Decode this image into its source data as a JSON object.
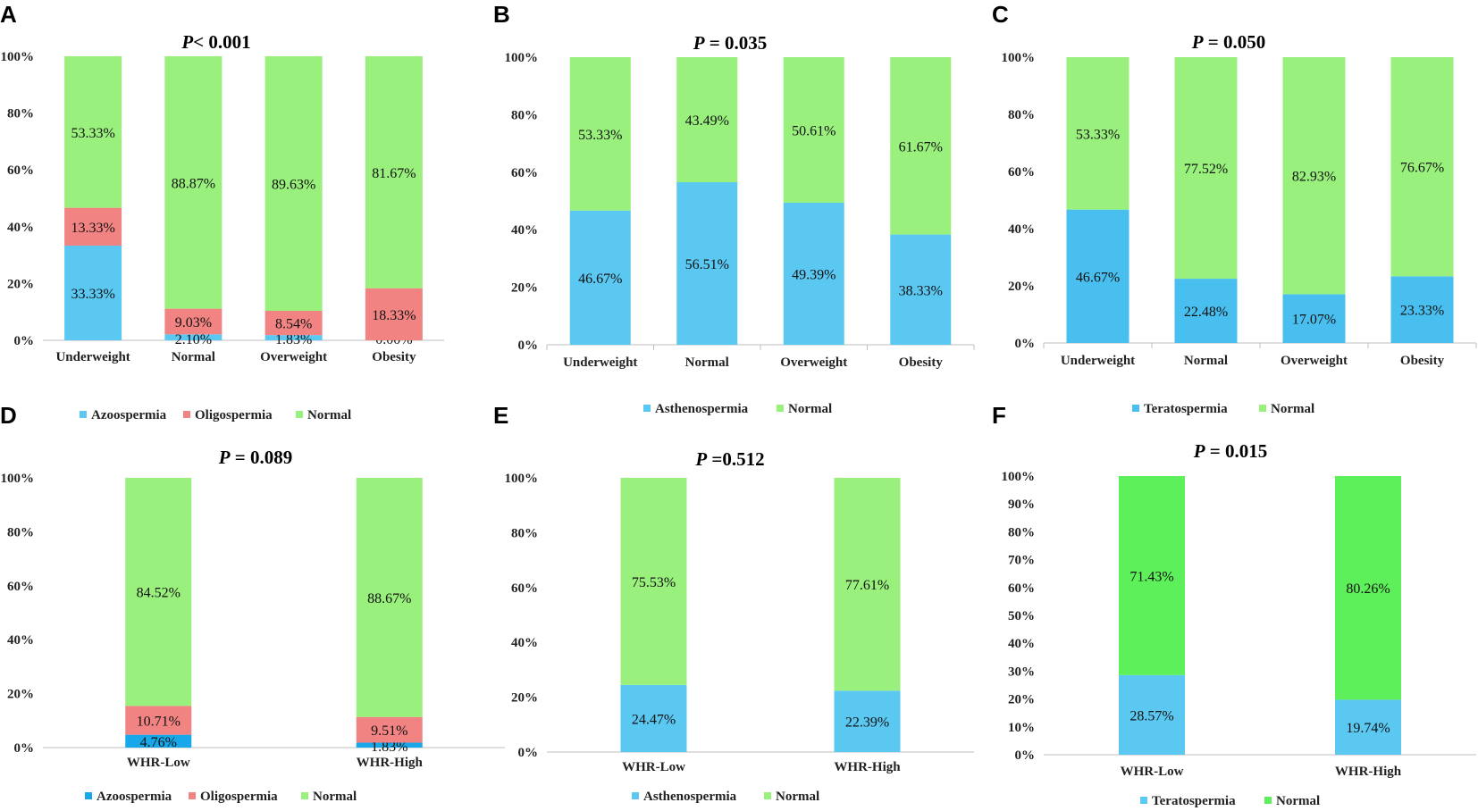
{
  "colors": {
    "A": {
      "Azoospermia": "#5bc8f2",
      "Oligospermia": "#f28383",
      "Normal": "#99f07c"
    },
    "B": {
      "Asthenospermia": "#5bc8f2",
      "Normal": "#99f07c"
    },
    "C": {
      "Teratospermia": "#49bff0",
      "Normal": "#99f07c"
    },
    "D": {
      "Azoospermia": "#18a8ea",
      "Oligospermia": "#f28383",
      "Normal": "#99f07c"
    },
    "E": {
      "Asthenospermia": "#5bc8f2",
      "Normal": "#99f07c"
    },
    "F": {
      "Teratospermia": "#5bc8f2",
      "Normal": "#5ef05a"
    }
  },
  "chart_data": [
    {
      "id": "A",
      "panel_label": "A",
      "type": "bar",
      "stacked": true,
      "title_prefix": "P",
      "title_rest": "< 0.001",
      "categories": [
        "Underweight",
        "Normal",
        "Overweight",
        "Obesity"
      ],
      "series": [
        {
          "name": "Azoospermia",
          "values": [
            33.33,
            2.1,
            1.83,
            0.0
          ],
          "labels": [
            "33.33%",
            "2.10%",
            "1.83%",
            "0.00%"
          ]
        },
        {
          "name": "Oligospermia",
          "values": [
            13.33,
            9.03,
            8.54,
            18.33
          ],
          "labels": [
            "13.33%",
            "9.03%",
            "8.54%",
            "18.33%"
          ]
        },
        {
          "name": "Normal",
          "values": [
            53.33,
            88.87,
            89.63,
            81.67
          ],
          "labels": [
            "53.33%",
            "88.87%",
            "89.63%",
            "81.67%"
          ]
        }
      ],
      "ylim": [
        0,
        100
      ],
      "yticks": [
        "0%",
        "20%",
        "40%",
        "60%",
        "80%",
        "100%"
      ],
      "legend": {
        "position": "bottom",
        "entries": [
          "Azoospermia",
          "Oligospermia",
          "Normal"
        ]
      }
    },
    {
      "id": "B",
      "panel_label": "B",
      "type": "bar",
      "stacked": true,
      "title_prefix": "P",
      "title_rest": " = 0.035",
      "categories": [
        "Underweight",
        "Normal",
        "Overweight",
        "Obesity"
      ],
      "series": [
        {
          "name": "Asthenospermia",
          "values": [
            46.67,
            56.51,
            49.39,
            38.33
          ],
          "labels": [
            "46.67%",
            "56.51%",
            "49.39%",
            "38.33%"
          ]
        },
        {
          "name": "Normal",
          "values": [
            53.33,
            43.49,
            50.61,
            61.67
          ],
          "labels": [
            "53.33%",
            "43.49%",
            "50.61%",
            "61.67%"
          ]
        }
      ],
      "ylim": [
        0,
        100
      ],
      "yticks": [
        "0%",
        "20%",
        "40%",
        "60%",
        "80%",
        "100%"
      ],
      "legend": {
        "position": "bottom",
        "entries": [
          "Asthenospermia",
          "Normal"
        ]
      }
    },
    {
      "id": "C",
      "panel_label": "C",
      "type": "bar",
      "stacked": true,
      "title_prefix": "P",
      "title_rest": " = 0.050",
      "categories": [
        "Underweight",
        "Normal",
        "Overweight",
        "Obesity"
      ],
      "series": [
        {
          "name": "Teratospermia",
          "values": [
            46.67,
            22.48,
            17.07,
            23.33
          ],
          "labels": [
            "46.67%",
            "22.48%",
            "17.07%",
            "23.33%"
          ]
        },
        {
          "name": "Normal",
          "values": [
            53.33,
            77.52,
            82.93,
            76.67
          ],
          "labels": [
            "53.33%",
            "77.52%",
            "82.93%",
            "76.67%"
          ]
        }
      ],
      "ylim": [
        0,
        100
      ],
      "yticks": [
        "0%",
        "20%",
        "40%",
        "60%",
        "80%",
        "100%"
      ],
      "legend": {
        "position": "bottom",
        "entries": [
          "Teratospermia",
          "Normal"
        ]
      }
    },
    {
      "id": "D",
      "panel_label": "D",
      "type": "bar",
      "stacked": true,
      "title_prefix": "P",
      "title_rest": " = 0.089",
      "categories": [
        "WHR-Low",
        "WHR-High"
      ],
      "series": [
        {
          "name": "Azoospermia",
          "values": [
            4.76,
            1.83
          ],
          "labels": [
            "4.76%",
            "1.83%"
          ]
        },
        {
          "name": "Oligospermia",
          "values": [
            10.71,
            9.51
          ],
          "labels": [
            "10.71%",
            "9.51%"
          ]
        },
        {
          "name": "Normal",
          "values": [
            84.52,
            88.67
          ],
          "labels": [
            "84.52%",
            "88.67%"
          ]
        }
      ],
      "ylim": [
        0,
        100
      ],
      "yticks": [
        "0%",
        "20%",
        "40%",
        "60%",
        "80%",
        "100%"
      ],
      "legend": {
        "position": "bottom",
        "entries": [
          "Azoospermia",
          "Oligospermia",
          "Normal"
        ]
      }
    },
    {
      "id": "E",
      "panel_label": "E",
      "type": "bar",
      "stacked": true,
      "title_prefix": "P",
      "title_rest": " =0.512",
      "categories": [
        "WHR-Low",
        "WHR-High"
      ],
      "series": [
        {
          "name": "Asthenospermia",
          "values": [
            24.47,
            22.39
          ],
          "labels": [
            "24.47%",
            "22.39%"
          ]
        },
        {
          "name": "Normal",
          "values": [
            75.53,
            77.61
          ],
          "labels": [
            "75.53%",
            "77.61%"
          ]
        }
      ],
      "ylim": [
        0,
        100
      ],
      "yticks": [
        "0%",
        "20%",
        "40%",
        "60%",
        "80%",
        "100%"
      ],
      "legend": {
        "position": "bottom",
        "entries": [
          "Asthenospermia",
          "Normal"
        ]
      }
    },
    {
      "id": "F",
      "panel_label": "F",
      "type": "bar",
      "stacked": true,
      "title_prefix": "P",
      "title_rest": " = 0.015",
      "categories": [
        "WHR-Low",
        "WHR-High"
      ],
      "series": [
        {
          "name": "Teratospermia",
          "values": [
            28.57,
            19.74
          ],
          "labels": [
            "28.57%",
            "19.74%"
          ]
        },
        {
          "name": "Normal",
          "values": [
            71.43,
            80.26
          ],
          "labels": [
            "71.43%",
            "80.26%"
          ]
        }
      ],
      "ylim": [
        0,
        100
      ],
      "yticks": [
        "0%",
        "10%",
        "20%",
        "30%",
        "40%",
        "50%",
        "60%",
        "70%",
        "80%",
        "90%",
        "100%"
      ],
      "legend": {
        "position": "bottom",
        "entries": [
          "Teratospermia",
          "Normal"
        ]
      }
    }
  ]
}
